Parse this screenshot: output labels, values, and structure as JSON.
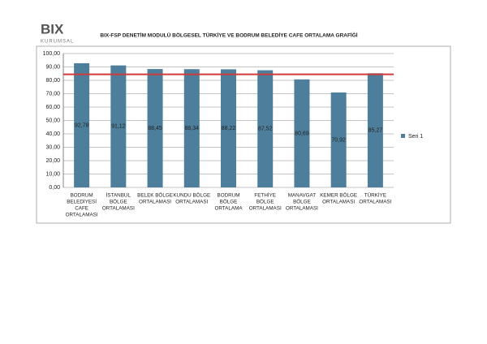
{
  "logo": {
    "brand": "BIX",
    "tagline": "KURUMSAL"
  },
  "chart_data": {
    "type": "bar",
    "title": "BIX-FSP DENETİM MODULÜ BÖLGESEL  TÜRKİYE VE BODRUM BELEDİYE CAFE ORTALAMA GRAFİĞİ",
    "categories": [
      [
        "BODRUM",
        "BELEDİYESİ",
        "CAFE",
        "ORTALAMASI"
      ],
      [
        "İSTANBUL",
        "BÖLGE",
        "ORTALAMASI"
      ],
      [
        "BELEK BÖLGE",
        "ORTALAMASI"
      ],
      [
        "KUNDU BÖLGE",
        "ORTALAMASI"
      ],
      [
        "BODRUM",
        "BÖLGE",
        "ORTALAMA"
      ],
      [
        "FETHİYE",
        "BÖLGE",
        "ORTALAMASI"
      ],
      [
        "MANAVGAT",
        "BÖLGE",
        "ORTALAMASI"
      ],
      [
        "KEMER BÖLGE",
        "ORTALAMASI"
      ],
      [
        "TÜRKİYE",
        "ORTALAMASI"
      ]
    ],
    "series": [
      {
        "name": "Seri 1",
        "color": "#4d7f9c",
        "values": [
          92.78,
          91.12,
          88.45,
          88.34,
          88.22,
          87.52,
          80.69,
          70.92,
          85.27
        ],
        "value_labels": [
          "92,78",
          "91,12",
          "88,45",
          "88,34",
          "88,22",
          "87,52",
          "80,69",
          "70,92",
          "85,27"
        ]
      }
    ],
    "reference_line": {
      "value": 84.5,
      "color": "#d03a3a"
    },
    "ylim": [
      0,
      100
    ],
    "yticks": [
      {
        "value": 0,
        "label": "0,00"
      },
      {
        "value": 10,
        "label": "10,00"
      },
      {
        "value": 20,
        "label": "20,00"
      },
      {
        "value": 30,
        "label": "30,00"
      },
      {
        "value": 40,
        "label": "40,00"
      },
      {
        "value": 50,
        "label": "50,00"
      },
      {
        "value": 60,
        "label": "60,00"
      },
      {
        "value": 70,
        "label": "70,00"
      },
      {
        "value": 80,
        "label": "80,00"
      },
      {
        "value": 90,
        "label": "90,00"
      },
      {
        "value": 100,
        "label": "100,00"
      }
    ],
    "grid": true
  }
}
